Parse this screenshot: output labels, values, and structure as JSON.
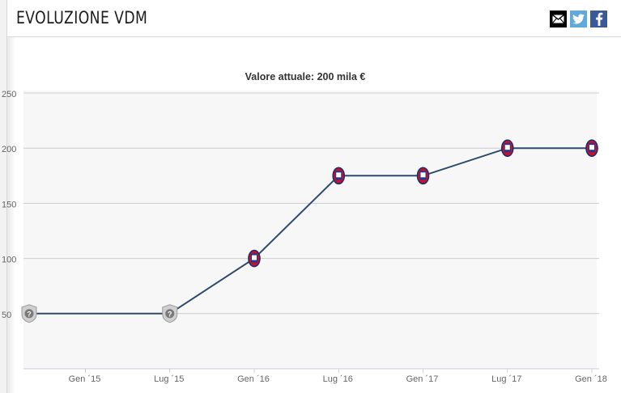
{
  "header": {
    "title": "EVOLUZIONE VDM",
    "icons": [
      "mail-icon",
      "twitter-icon",
      "facebook-icon"
    ]
  },
  "chart_data": {
    "type": "line",
    "title": "Valore attuale: 200 mila €",
    "xlabel": "",
    "ylabel": "",
    "ylim": [
      0,
      250
    ],
    "yticks": [
      "50",
      "100",
      "150",
      "200",
      "250"
    ],
    "xticks": [
      "Gen ´15",
      "Lug ´15",
      "Gen ´16",
      "Lug ´16",
      "Gen ´17",
      "Lug ´17",
      "Gen ´18"
    ],
    "grid": true,
    "series": [
      {
        "x": [
          "2014-09",
          "2015-07",
          "2016-01",
          "2016-07",
          "2017-01",
          "2017-07",
          "2018-01"
        ],
        "values": [
          50,
          50,
          100,
          175,
          175,
          200,
          200
        ],
        "markers": [
          "unknown-club-badge",
          "unknown-club-badge",
          "club-badge",
          "club-badge",
          "club-badge",
          "club-badge",
          "club-badge"
        ]
      }
    ],
    "colors": {
      "line": "#2e4a6e",
      "plot_bg": "#f7f7f7",
      "grid": "#cccccc"
    }
  }
}
